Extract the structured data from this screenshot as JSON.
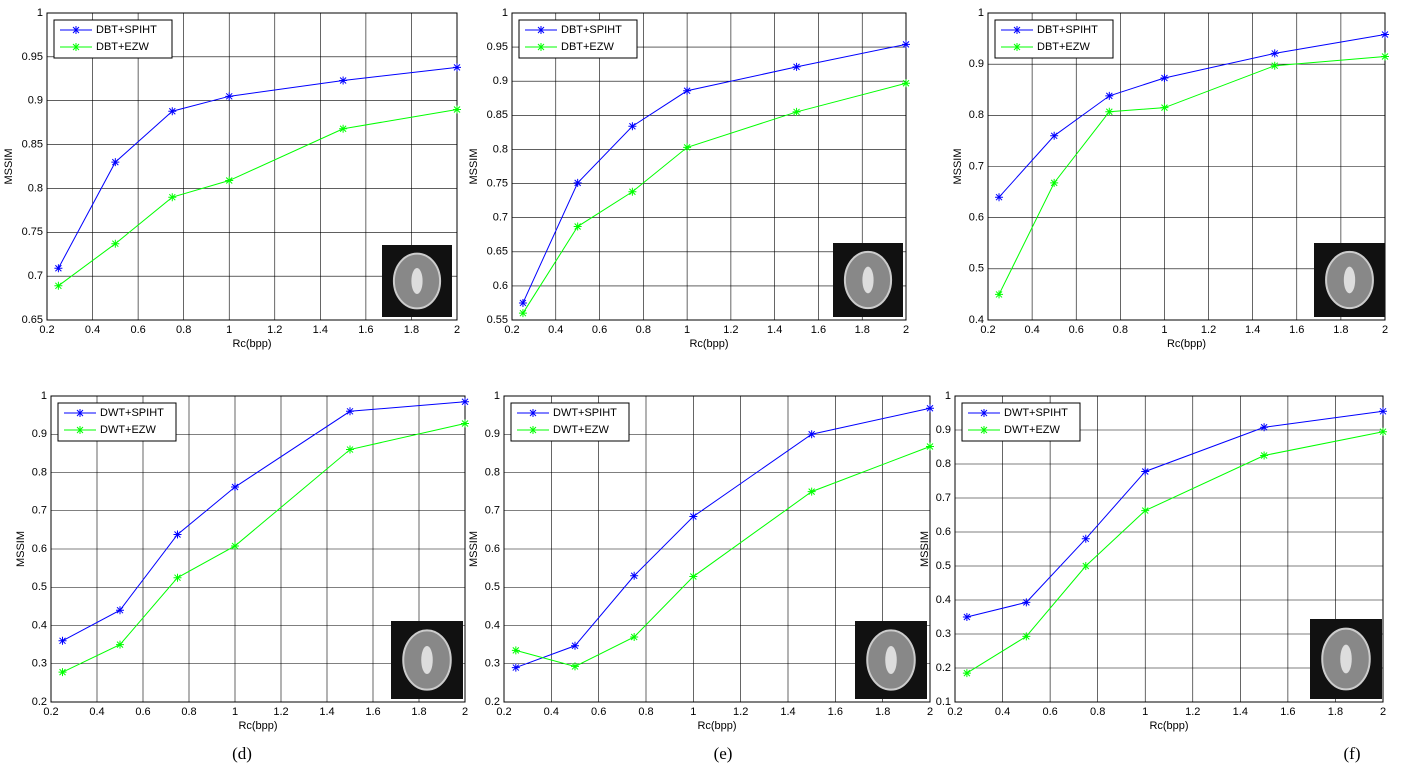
{
  "chart_data": [
    {
      "type": "line",
      "xlabel": "Rc(bpp)",
      "ylabel": "MSSIM",
      "x": [
        0.25,
        0.5,
        0.75,
        1,
        1.5,
        2
      ],
      "series": [
        {
          "name": "DBT+SPIHT",
          "color": "#0000ff",
          "values": [
            0.709,
            0.83,
            0.888,
            0.905,
            0.923,
            0.938
          ]
        },
        {
          "name": "DBT+EZW",
          "color": "#00ff00",
          "values": [
            0.689,
            0.737,
            0.79,
            0.809,
            0.868,
            0.89
          ]
        }
      ],
      "xlim": [
        0.2,
        2
      ],
      "xticks": [
        0.2,
        0.4,
        0.6,
        0.8,
        1,
        1.2,
        1.4,
        1.6,
        1.8,
        2
      ],
      "ylim": [
        0.65,
        1
      ],
      "yticks": [
        0.65,
        0.7,
        0.75,
        0.8,
        0.85,
        0.9,
        0.95,
        1
      ],
      "grid": true,
      "legend": "top-left"
    },
    {
      "type": "line",
      "xlabel": "Rc(bpp)",
      "ylabel": "MSSIM",
      "x": [
        0.25,
        0.5,
        0.75,
        1,
        1.5,
        2
      ],
      "series": [
        {
          "name": "DBT+SPIHT",
          "color": "#0000ff",
          "values": [
            0.575,
            0.751,
            0.834,
            0.886,
            0.921,
            0.954
          ]
        },
        {
          "name": "DBT+EZW",
          "color": "#00ff00",
          "values": [
            0.56,
            0.687,
            0.738,
            0.803,
            0.855,
            0.897
          ]
        }
      ],
      "xlim": [
        0.2,
        2
      ],
      "xticks": [
        0.2,
        0.4,
        0.6,
        0.8,
        1,
        1.2,
        1.4,
        1.6,
        1.8,
        2
      ],
      "ylim": [
        0.55,
        1
      ],
      "yticks": [
        0.55,
        0.6,
        0.65,
        0.7,
        0.75,
        0.8,
        0.85,
        0.9,
        0.95,
        1
      ],
      "grid": true,
      "legend": "top-left"
    },
    {
      "type": "line",
      "xlabel": "Rc(bpp)",
      "ylabel": "MSSIM",
      "x": [
        0.25,
        0.5,
        0.75,
        1,
        1.5,
        2
      ],
      "series": [
        {
          "name": "DBT+SPIHT",
          "color": "#0000ff",
          "values": [
            0.64,
            0.76,
            0.838,
            0.873,
            0.921,
            0.958
          ]
        },
        {
          "name": "DBT+EZW",
          "color": "#00ff00",
          "values": [
            0.45,
            0.668,
            0.807,
            0.815,
            0.897,
            0.915
          ]
        }
      ],
      "xlim": [
        0.2,
        2
      ],
      "xticks": [
        0.2,
        0.4,
        0.6,
        0.8,
        1,
        1.2,
        1.4,
        1.6,
        1.8,
        2
      ],
      "ylim": [
        0.4,
        1
      ],
      "yticks": [
        0.4,
        0.5,
        0.6,
        0.7,
        0.8,
        0.9,
        1
      ],
      "grid": true,
      "legend": "top-left"
    },
    {
      "type": "line",
      "xlabel": "Rc(bpp)",
      "ylabel": "MSSIM",
      "caption": "(d)",
      "x": [
        0.25,
        0.5,
        0.75,
        1,
        1.5,
        2
      ],
      "series": [
        {
          "name": "DWT+SPIHT",
          "color": "#0000ff",
          "values": [
            0.36,
            0.44,
            0.638,
            0.762,
            0.96,
            0.985
          ]
        },
        {
          "name": "DWT+EZW",
          "color": "#00ff00",
          "values": [
            0.278,
            0.35,
            0.525,
            0.608,
            0.86,
            0.928
          ]
        }
      ],
      "xlim": [
        0.2,
        2
      ],
      "xticks": [
        0.2,
        0.4,
        0.6,
        0.8,
        1,
        1.2,
        1.4,
        1.6,
        1.8,
        2
      ],
      "ylim": [
        0.2,
        1
      ],
      "yticks": [
        0.2,
        0.3,
        0.4,
        0.5,
        0.6,
        0.7,
        0.8,
        0.9,
        1
      ],
      "grid": true,
      "legend": "top-left"
    },
    {
      "type": "line",
      "xlabel": "Rc(bpp)",
      "ylabel": "MSSIM",
      "caption": "(e)",
      "x": [
        0.25,
        0.5,
        0.75,
        1,
        1.5,
        2
      ],
      "series": [
        {
          "name": "DWT+SPIHT",
          "color": "#0000ff",
          "values": [
            0.29,
            0.347,
            0.53,
            0.685,
            0.9,
            0.968
          ]
        },
        {
          "name": "DWT+EZW",
          "color": "#00ff00",
          "values": [
            0.335,
            0.293,
            0.37,
            0.528,
            0.75,
            0.868
          ]
        }
      ],
      "xlim": [
        0.2,
        2
      ],
      "xticks": [
        0.2,
        0.4,
        0.6,
        0.8,
        1,
        1.2,
        1.4,
        1.6,
        1.8,
        2
      ],
      "ylim": [
        0.2,
        1
      ],
      "yticks": [
        0.2,
        0.3,
        0.4,
        0.5,
        0.6,
        0.7,
        0.8,
        0.9,
        1
      ],
      "grid": true,
      "legend": "top-left"
    },
    {
      "type": "line",
      "xlabel": "Rc(bpp)",
      "ylabel": "MSSIM",
      "caption": "(f)",
      "x": [
        0.25,
        0.5,
        0.75,
        1,
        1.5,
        2
      ],
      "series": [
        {
          "name": "DWT+SPIHT",
          "color": "#0000ff",
          "values": [
            0.35,
            0.393,
            0.58,
            0.778,
            0.908,
            0.955
          ]
        },
        {
          "name": "DWT+EZW",
          "color": "#00ff00",
          "values": [
            0.185,
            0.293,
            0.5,
            0.663,
            0.825,
            0.895
          ]
        }
      ],
      "xlim": [
        0.2,
        2
      ],
      "xticks": [
        0.2,
        0.4,
        0.6,
        0.8,
        1,
        1.2,
        1.4,
        1.6,
        1.8,
        2
      ],
      "ylim": [
        0.1,
        1
      ],
      "yticks": [
        0.1,
        0.2,
        0.3,
        0.4,
        0.5,
        0.6,
        0.7,
        0.8,
        0.9,
        1
      ],
      "grid": true,
      "legend": "top-left"
    }
  ]
}
